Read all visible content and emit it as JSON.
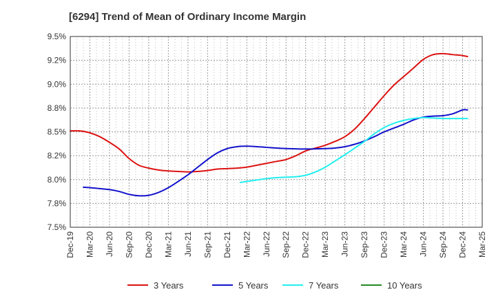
{
  "chart_data": {
    "type": "line",
    "title": "[6294]  Trend of Mean of Ordinary Income Margin",
    "xlabel": "",
    "ylabel": "",
    "y_ticks": [
      "7.5%",
      "7.8%",
      "8.0%",
      "8.2%",
      "8.5%",
      "8.8%",
      "9.0%",
      "9.2%",
      "9.5%"
    ],
    "ylim": [
      7.5,
      9.5
    ],
    "x_ticks": [
      "Dec-19",
      "Mar-20",
      "Jun-20",
      "Sep-20",
      "Dec-20",
      "Mar-21",
      "Jun-21",
      "Sep-21",
      "Dec-21",
      "Mar-22",
      "Jun-22",
      "Sep-22",
      "Dec-22",
      "Mar-23",
      "Jun-23",
      "Sep-23",
      "Dec-23",
      "Mar-24",
      "Jun-24",
      "Sep-24",
      "Dec-24",
      "Mar-25"
    ],
    "grid": true,
    "legend_position": "bottom",
    "series": [
      {
        "name": "3 Years",
        "color": "#dd1111",
        "points": [
          [
            0,
            8.51
          ],
          [
            0.5,
            8.51
          ],
          [
            1,
            8.49
          ],
          [
            1.5,
            8.45
          ],
          [
            2,
            8.39
          ],
          [
            2.5,
            8.32
          ],
          [
            3,
            8.22
          ],
          [
            3.5,
            8.15
          ],
          [
            4,
            8.12
          ],
          [
            4.5,
            8.1
          ],
          [
            5,
            8.09
          ],
          [
            5.5,
            8.085
          ],
          [
            6,
            8.08
          ],
          [
            6.5,
            8.085
          ],
          [
            7,
            8.095
          ],
          [
            7.5,
            8.11
          ],
          [
            8,
            8.115
          ],
          [
            8.5,
            8.12
          ],
          [
            9,
            8.13
          ],
          [
            9.5,
            8.15
          ],
          [
            10,
            8.17
          ],
          [
            10.5,
            8.19
          ],
          [
            11,
            8.21
          ],
          [
            11.5,
            8.25
          ],
          [
            12,
            8.3
          ],
          [
            12.5,
            8.33
          ],
          [
            13,
            8.36
          ],
          [
            13.5,
            8.4
          ],
          [
            14,
            8.45
          ],
          [
            14.5,
            8.53
          ],
          [
            15,
            8.64
          ],
          [
            15.5,
            8.76
          ],
          [
            16,
            8.88
          ],
          [
            16.5,
            8.99
          ],
          [
            17,
            9.08
          ],
          [
            17.5,
            9.17
          ],
          [
            18,
            9.26
          ],
          [
            18.5,
            9.31
          ],
          [
            19,
            9.32
          ],
          [
            19.5,
            9.31
          ],
          [
            20,
            9.3
          ],
          [
            20.25,
            9.29
          ]
        ]
      },
      {
        "name": "5 Years",
        "color": "#1111cc",
        "points": [
          [
            0.67,
            7.92
          ],
          [
            1,
            7.915
          ],
          [
            1.5,
            7.905
          ],
          [
            2,
            7.895
          ],
          [
            2.5,
            7.875
          ],
          [
            3,
            7.845
          ],
          [
            3.5,
            7.83
          ],
          [
            4,
            7.835
          ],
          [
            4.5,
            7.865
          ],
          [
            5,
            7.915
          ],
          [
            5.5,
            7.98
          ],
          [
            6,
            8.05
          ],
          [
            6.5,
            8.13
          ],
          [
            7,
            8.21
          ],
          [
            7.5,
            8.28
          ],
          [
            8,
            8.325
          ],
          [
            8.5,
            8.345
          ],
          [
            9,
            8.35
          ],
          [
            9.5,
            8.345
          ],
          [
            10,
            8.338
          ],
          [
            10.5,
            8.33
          ],
          [
            11,
            8.325
          ],
          [
            11.5,
            8.322
          ],
          [
            12,
            8.32
          ],
          [
            12.5,
            8.322
          ],
          [
            13,
            8.325
          ],
          [
            13.5,
            8.33
          ],
          [
            14,
            8.345
          ],
          [
            14.5,
            8.37
          ],
          [
            15,
            8.405
          ],
          [
            15.5,
            8.45
          ],
          [
            16,
            8.5
          ],
          [
            16.5,
            8.54
          ],
          [
            17,
            8.58
          ],
          [
            17.5,
            8.625
          ],
          [
            18,
            8.655
          ],
          [
            18.5,
            8.665
          ],
          [
            19,
            8.67
          ],
          [
            19.5,
            8.69
          ],
          [
            20,
            8.73
          ],
          [
            20.25,
            8.73
          ]
        ]
      },
      {
        "name": "7 Years",
        "color": "#22eeee",
        "points": [
          [
            8.67,
            7.97
          ],
          [
            9,
            7.98
          ],
          [
            9.5,
            7.995
          ],
          [
            10,
            8.01
          ],
          [
            10.5,
            8.02
          ],
          [
            11,
            8.025
          ],
          [
            11.5,
            8.03
          ],
          [
            12,
            8.045
          ],
          [
            12.5,
            8.08
          ],
          [
            13,
            8.13
          ],
          [
            13.5,
            8.195
          ],
          [
            14,
            8.26
          ],
          [
            14.5,
            8.33
          ],
          [
            15,
            8.4
          ],
          [
            15.5,
            8.48
          ],
          [
            16,
            8.545
          ],
          [
            16.5,
            8.59
          ],
          [
            17,
            8.62
          ],
          [
            17.5,
            8.64
          ],
          [
            18,
            8.65
          ],
          [
            18.5,
            8.645
          ],
          [
            19,
            8.64
          ],
          [
            19.5,
            8.64
          ],
          [
            20,
            8.64
          ],
          [
            20.25,
            8.64
          ]
        ]
      },
      {
        "name": "10 Years",
        "color": "#228822",
        "points": []
      }
    ]
  }
}
